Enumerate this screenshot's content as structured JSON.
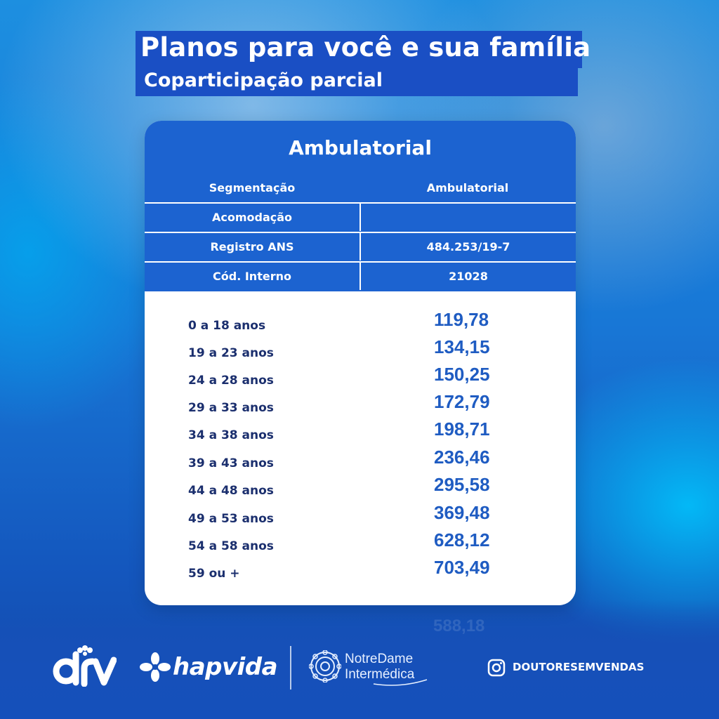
{
  "header": {
    "title": "Planos para você e sua família",
    "subtitle": "Coparticipação parcial"
  },
  "card": {
    "title": "Ambulatorial",
    "info": [
      {
        "label": "Segmentação",
        "value": "Ambulatorial"
      },
      {
        "label": "Acomodação",
        "value": ""
      },
      {
        "label": "Registro ANS",
        "value": "484.253/19-7"
      },
      {
        "label": "Cód. Interno",
        "value": "21028"
      }
    ],
    "prices": [
      {
        "age": "0 a 18 anos",
        "price": "119,78"
      },
      {
        "age": "19 a 23 anos",
        "price": "134,15"
      },
      {
        "age": "24 a 28 anos",
        "price": "150,25"
      },
      {
        "age": "29 a 33 anos",
        "price": "172,79"
      },
      {
        "age": "34 a 38 anos",
        "price": "198,71"
      },
      {
        "age": "39 a 43 anos",
        "price": "236,46"
      },
      {
        "age": "44 a 48 anos",
        "price": "295,58"
      },
      {
        "age": "49 a 53 anos",
        "price": "369,48"
      },
      {
        "age": "54 a 58 anos",
        "price": "628,12"
      },
      {
        "age": "59 ou +",
        "price": "703,49"
      }
    ]
  },
  "ghost_value": "588,18",
  "footer": {
    "logo_drv": "drv",
    "logo_hapvida": "hapvida",
    "notredame_line1": "NotreDame",
    "notredame_line2": "Intermédica",
    "instagram_handle": "DOUTORESEMVENDAS"
  },
  "colors": {
    "brand_blue": "#1c63d0",
    "title_box": "#1a4fc4",
    "price_text": "#1f5cc2",
    "age_text": "#1b2f6e"
  },
  "icons": [
    "drv-logo-icon",
    "hapvida-flower-icon",
    "notredame-mandala-icon",
    "instagram-icon"
  ]
}
